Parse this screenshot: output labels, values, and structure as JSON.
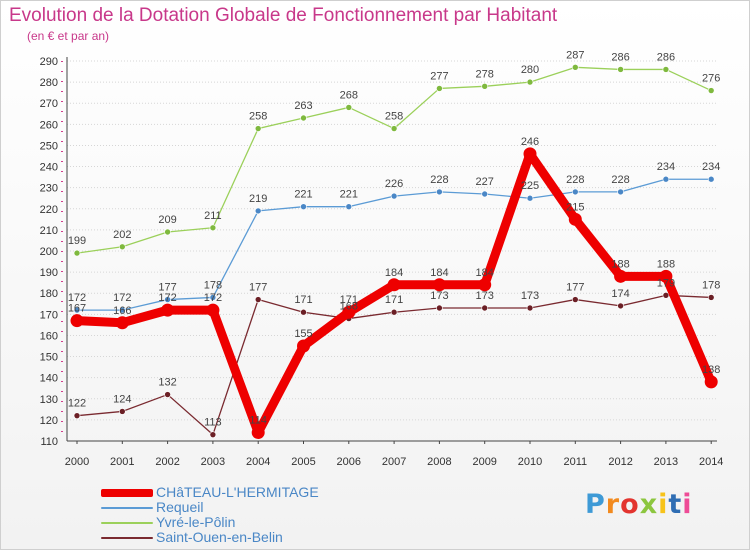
{
  "header": {
    "title": "Evolution de la Dotation Globale de Fonctionnement par Habitant",
    "subtitle": "(en € et par an)"
  },
  "logo": {
    "letters": [
      "P",
      "r",
      "o",
      "x",
      "i",
      "t",
      "i"
    ],
    "colors": [
      "#3e9ad6",
      "#f28a1e",
      "#e3342f",
      "#8cc63f",
      "#f7c31a",
      "#2f6db3",
      "#ee4c97"
    ]
  },
  "chart_data": {
    "type": "line",
    "title": "Evolution de la Dotation Globale de Fonctionnement par Habitant",
    "subtitle": "(en € et par an)",
    "xlabel": "",
    "ylabel": "",
    "categories": [
      "2000",
      "2001",
      "2002",
      "2003",
      "2004",
      "2005",
      "2006",
      "2007",
      "2008",
      "2009",
      "2010",
      "2011",
      "2012",
      "2013",
      "2014"
    ],
    "ylim": [
      110,
      290
    ],
    "yticks": [
      110,
      120,
      130,
      140,
      150,
      160,
      170,
      180,
      190,
      200,
      210,
      220,
      230,
      240,
      250,
      260,
      270,
      280,
      290
    ],
    "grid": "horizontal",
    "legend_position": "bottom-left",
    "series": [
      {
        "name": "Yvré-le-Pôlin",
        "color": "#9bd05a",
        "marker": "#7fb93e",
        "emphasis": false,
        "values": [
          199,
          202,
          209,
          211,
          258,
          263,
          268,
          258,
          277,
          278,
          280,
          287,
          286,
          286,
          276
        ]
      },
      {
        "name": "Requeil",
        "color": "#5b9bd5",
        "marker": "#4a87c6",
        "emphasis": false,
        "values": [
          172,
          172,
          177,
          178,
          219,
          221,
          221,
          226,
          228,
          227,
          225,
          228,
          228,
          234,
          234
        ]
      },
      {
        "name": "Saint-Ouen-en-Belin",
        "color": "#7a2a30",
        "marker": "#6b1f25",
        "emphasis": false,
        "values": [
          122,
          124,
          132,
          113,
          177,
          171,
          168,
          171,
          173,
          173,
          173,
          177,
          174,
          179,
          178
        ]
      },
      {
        "name": "CHâTEAU-L'HERMITAGE",
        "color": "#ee0000",
        "marker": "#ee0000",
        "emphasis": true,
        "values": [
          167,
          166,
          172,
          172,
          114,
          155,
          171,
          184,
          184,
          184,
          246,
          215,
          188,
          188,
          138
        ]
      }
    ],
    "legend_order": [
      "CHâTEAU-L'HERMITAGE",
      "Requeil",
      "Yvré-le-Pôlin",
      "Saint-Ouen-en-Belin"
    ]
  }
}
